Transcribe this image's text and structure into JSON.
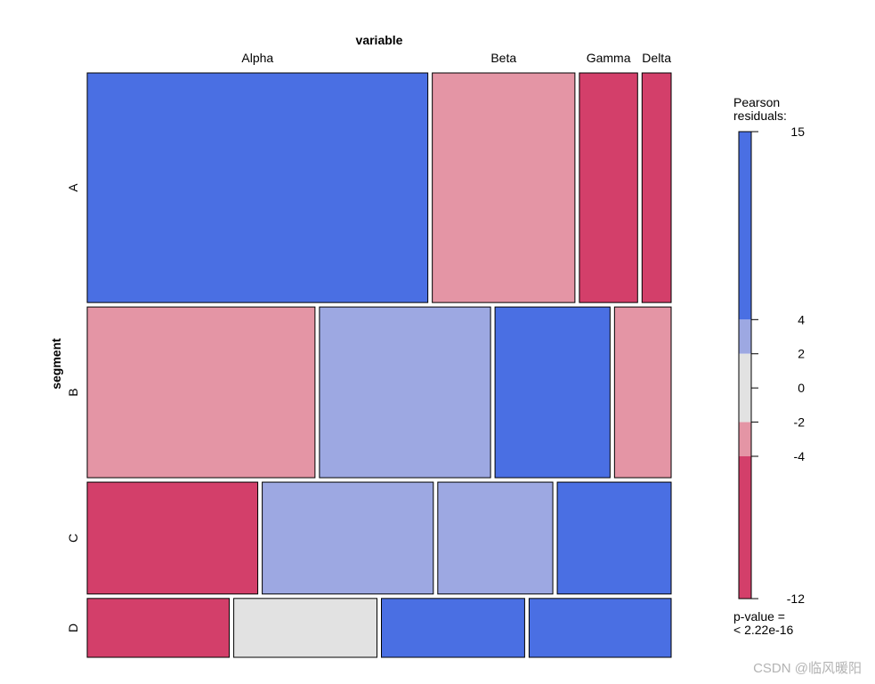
{
  "chart_data": {
    "type": "mosaic",
    "top_label": "variable",
    "side_label": "segment",
    "columns": [
      "Alpha",
      "Beta",
      "Gamma",
      "Delta"
    ],
    "rows": [
      {
        "label": "A",
        "weight": 0.39,
        "cells": [
          {
            "column": "Alpha",
            "share": 0.585,
            "residual_band": "4 to 15"
          },
          {
            "column": "Beta",
            "share": 0.245,
            "residual_band": "-4 to -2"
          },
          {
            "column": "Gamma",
            "share": 0.1,
            "residual_band": "-12 to -4"
          },
          {
            "column": "Delta",
            "share": 0.05,
            "residual_band": "-12 to -4"
          }
        ]
      },
      {
        "label": "B",
        "weight": 0.29,
        "cells": [
          {
            "column": "Alpha",
            "share": 0.39,
            "residual_band": "-4 to -2"
          },
          {
            "column": "Beta",
            "share": 0.293,
            "residual_band": "2 to 4"
          },
          {
            "column": "Gamma",
            "share": 0.197,
            "residual_band": "4 to 15"
          },
          {
            "column": "Delta",
            "share": 0.097,
            "residual_band": "-4 to -2"
          }
        ]
      },
      {
        "label": "C",
        "weight": 0.19,
        "cells": [
          {
            "column": "Alpha",
            "share": 0.292,
            "residual_band": "-12 to -4"
          },
          {
            "column": "Beta",
            "share": 0.293,
            "residual_band": "2 to 4"
          },
          {
            "column": "Gamma",
            "share": 0.197,
            "residual_band": "2 to 4"
          },
          {
            "column": "Delta",
            "share": 0.195,
            "residual_band": "4 to 15"
          }
        ]
      },
      {
        "label": "D",
        "weight": 0.1,
        "cells": [
          {
            "column": "Alpha",
            "share": 0.243,
            "residual_band": "-12 to -4"
          },
          {
            "column": "Beta",
            "share": 0.245,
            "residual_band": "-2 to 2"
          },
          {
            "column": "Gamma",
            "share": 0.245,
            "residual_band": "4 to 15"
          },
          {
            "column": "Delta",
            "share": 0.243,
            "residual_band": "4 to 15"
          }
        ]
      }
    ],
    "legend": {
      "title_line1": "Pearson",
      "title_line2": "residuals:",
      "range": [
        -12,
        15
      ],
      "ticks": [
        15,
        4,
        2,
        0,
        -2,
        -4,
        -12
      ],
      "bands": [
        {
          "from": 4,
          "to": 15,
          "color": "#4a6fe3"
        },
        {
          "from": 2,
          "to": 4,
          "color": "#9da8e2"
        },
        {
          "from": -2,
          "to": 2,
          "color": "#e2e2e2"
        },
        {
          "from": -4,
          "to": -2,
          "color": "#e495a5"
        },
        {
          "from": -12,
          "to": -4,
          "color": "#d33f6a"
        }
      ],
      "pvalue_line1": "p-value =",
      "pvalue_line2": "< 2.22e-16"
    }
  },
  "watermark": "CSDN @临风暖阳"
}
